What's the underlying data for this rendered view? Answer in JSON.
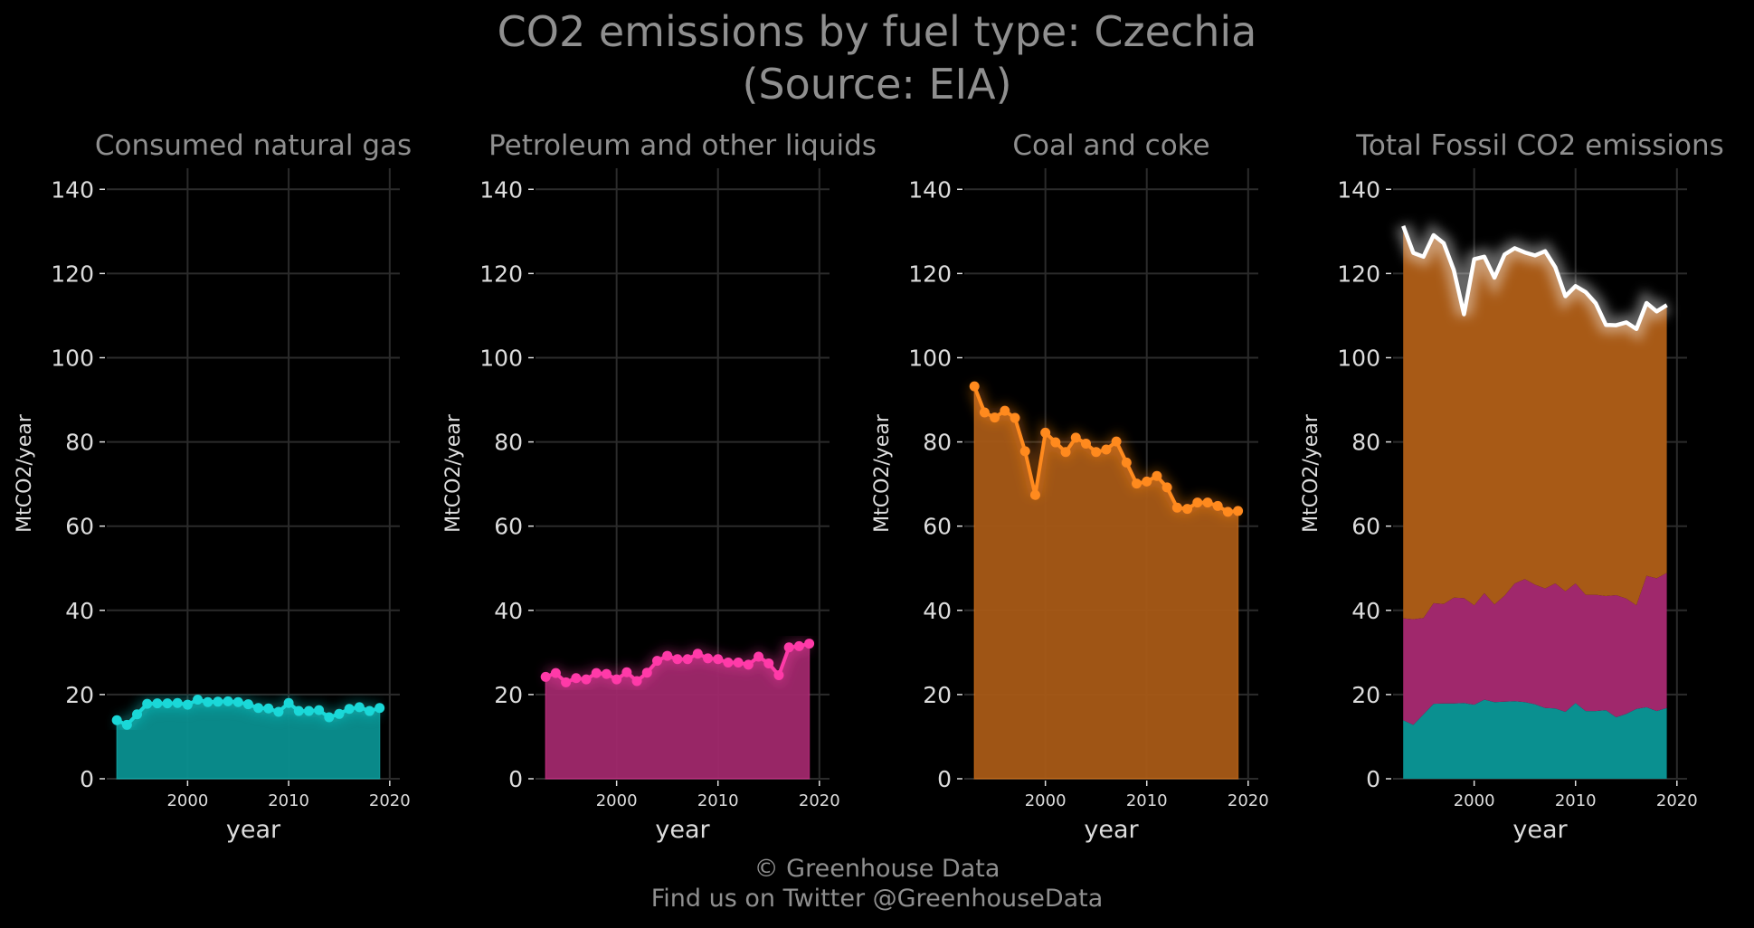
{
  "title_line1": "CO2 emissions by fuel type: Czechia",
  "title_line2": "(Source: EIA)",
  "credit_line1": "© Greenhouse Data",
  "credit_line2": "Find us on Twitter @GreenhouseData",
  "colors": {
    "background": "#000000",
    "grid": "#2b2b2b",
    "text": "#dddddd",
    "muted_text": "#8f8f8f",
    "gas": "#1ad8d8",
    "gas_fill": "#0a9090",
    "petroleum": "#ff3aa8",
    "petroleum_fill": "#a0286c",
    "coal": "#ff8a1e",
    "coal_fill": "#a85a16",
    "total": "#ffffff"
  },
  "chart_data": [
    {
      "type": "area",
      "title": "Consumed natural gas",
      "xlabel": "year",
      "ylabel": "MtCO2/year",
      "ylim": [
        0,
        145
      ],
      "xlim": [
        1992,
        2021
      ],
      "xticks": [
        2000,
        2010,
        2020
      ],
      "yticks": [
        0,
        20,
        40,
        60,
        80,
        100,
        120,
        140
      ],
      "grid": true,
      "x": [
        1993,
        1994,
        1995,
        1996,
        1997,
        1998,
        1999,
        2000,
        2001,
        2002,
        2003,
        2004,
        2005,
        2006,
        2007,
        2008,
        2009,
        2010,
        2011,
        2012,
        2013,
        2014,
        2015,
        2016,
        2017,
        2018,
        2019
      ],
      "series": [
        {
          "color": "gas",
          "values": [
            13.9,
            12.8,
            15.3,
            17.8,
            17.9,
            17.9,
            18.0,
            17.6,
            18.8,
            18.2,
            18.3,
            18.4,
            18.2,
            17.7,
            16.8,
            16.7,
            15.9,
            18.0,
            16.1,
            16.1,
            16.3,
            14.6,
            15.4,
            16.6,
            17.0,
            16.1,
            16.8
          ]
        }
      ]
    },
    {
      "type": "area",
      "title": "Petroleum and other liquids",
      "xlabel": "year",
      "ylabel": "MtCO2/year",
      "ylim": [
        0,
        145
      ],
      "xlim": [
        1992,
        2021
      ],
      "xticks": [
        2000,
        2010,
        2020
      ],
      "yticks": [
        0,
        20,
        40,
        60,
        80,
        100,
        120,
        140
      ],
      "grid": true,
      "x": [
        1993,
        1994,
        1995,
        1996,
        1997,
        1998,
        1999,
        2000,
        2001,
        2002,
        2003,
        2004,
        2005,
        2006,
        2007,
        2008,
        2009,
        2010,
        2011,
        2012,
        2013,
        2014,
        2015,
        2016,
        2017,
        2018,
        2019
      ],
      "series": [
        {
          "color": "petroleum",
          "values": [
            24.2,
            25.1,
            22.9,
            23.9,
            23.6,
            25.1,
            24.9,
            23.6,
            25.3,
            23.2,
            25.2,
            28.0,
            29.2,
            28.4,
            28.4,
            29.7,
            28.6,
            28.4,
            27.6,
            27.6,
            27.1,
            29.0,
            27.4,
            24.6,
            31.2,
            31.5,
            32.1
          ]
        }
      ]
    },
    {
      "type": "area",
      "title": "Coal and coke",
      "xlabel": "year",
      "ylabel": "MtCO2/year",
      "ylim": [
        0,
        145
      ],
      "xlim": [
        1992,
        2021
      ],
      "xticks": [
        2000,
        2010,
        2020
      ],
      "yticks": [
        0,
        20,
        40,
        60,
        80,
        100,
        120,
        140
      ],
      "grid": true,
      "x": [
        1993,
        1994,
        1995,
        1996,
        1997,
        1998,
        1999,
        2000,
        2001,
        2002,
        2003,
        2004,
        2005,
        2006,
        2007,
        2008,
        2009,
        2010,
        2011,
        2012,
        2013,
        2014,
        2015,
        2016,
        2017,
        2018,
        2019
      ],
      "series": [
        {
          "color": "coal",
          "values": [
            93.2,
            87.0,
            85.8,
            87.4,
            85.7,
            77.8,
            67.4,
            82.2,
            79.9,
            77.6,
            81.0,
            79.6,
            77.6,
            78.2,
            80.1,
            75.1,
            70.1,
            70.6,
            71.9,
            69.2,
            64.4,
            64.1,
            65.6,
            65.6,
            64.8,
            63.4,
            63.6
          ]
        }
      ]
    },
    {
      "type": "area",
      "title": "Total Fossil CO2 emissions",
      "xlabel": "year",
      "ylabel": "MtCO2/year",
      "ylim": [
        0,
        145
      ],
      "xlim": [
        1992,
        2021
      ],
      "xticks": [
        2000,
        2010,
        2020
      ],
      "yticks": [
        0,
        20,
        40,
        60,
        80,
        100,
        120,
        140
      ],
      "grid": true,
      "stacked": true,
      "x": [
        1993,
        1994,
        1995,
        1996,
        1997,
        1998,
        1999,
        2000,
        2001,
        2002,
        2003,
        2004,
        2005,
        2006,
        2007,
        2008,
        2009,
        2010,
        2011,
        2012,
        2013,
        2014,
        2015,
        2016,
        2017,
        2018,
        2019
      ],
      "series": [
        {
          "color": "gas",
          "values": [
            13.9,
            12.8,
            15.3,
            17.8,
            17.9,
            17.9,
            18.0,
            17.6,
            18.8,
            18.2,
            18.3,
            18.4,
            18.2,
            17.7,
            16.8,
            16.7,
            15.9,
            18.0,
            16.1,
            16.1,
            16.3,
            14.6,
            15.4,
            16.6,
            17.0,
            16.1,
            16.8
          ]
        },
        {
          "color": "petroleum",
          "values": [
            24.2,
            25.1,
            22.9,
            23.9,
            23.6,
            25.1,
            24.9,
            23.6,
            25.3,
            23.2,
            25.2,
            28.0,
            29.2,
            28.4,
            28.4,
            29.7,
            28.6,
            28.4,
            27.6,
            27.6,
            27.1,
            29.0,
            27.4,
            24.6,
            31.2,
            31.5,
            32.1
          ]
        },
        {
          "color": "coal",
          "values": [
            93.2,
            87.0,
            85.8,
            87.4,
            85.7,
            77.8,
            67.4,
            82.2,
            79.9,
            77.6,
            81.0,
            79.6,
            77.6,
            78.2,
            80.1,
            75.1,
            70.1,
            70.6,
            71.9,
            69.2,
            64.4,
            64.1,
            65.6,
            65.6,
            64.8,
            63.4,
            63.6
          ]
        }
      ],
      "total_line_color": "total"
    }
  ]
}
